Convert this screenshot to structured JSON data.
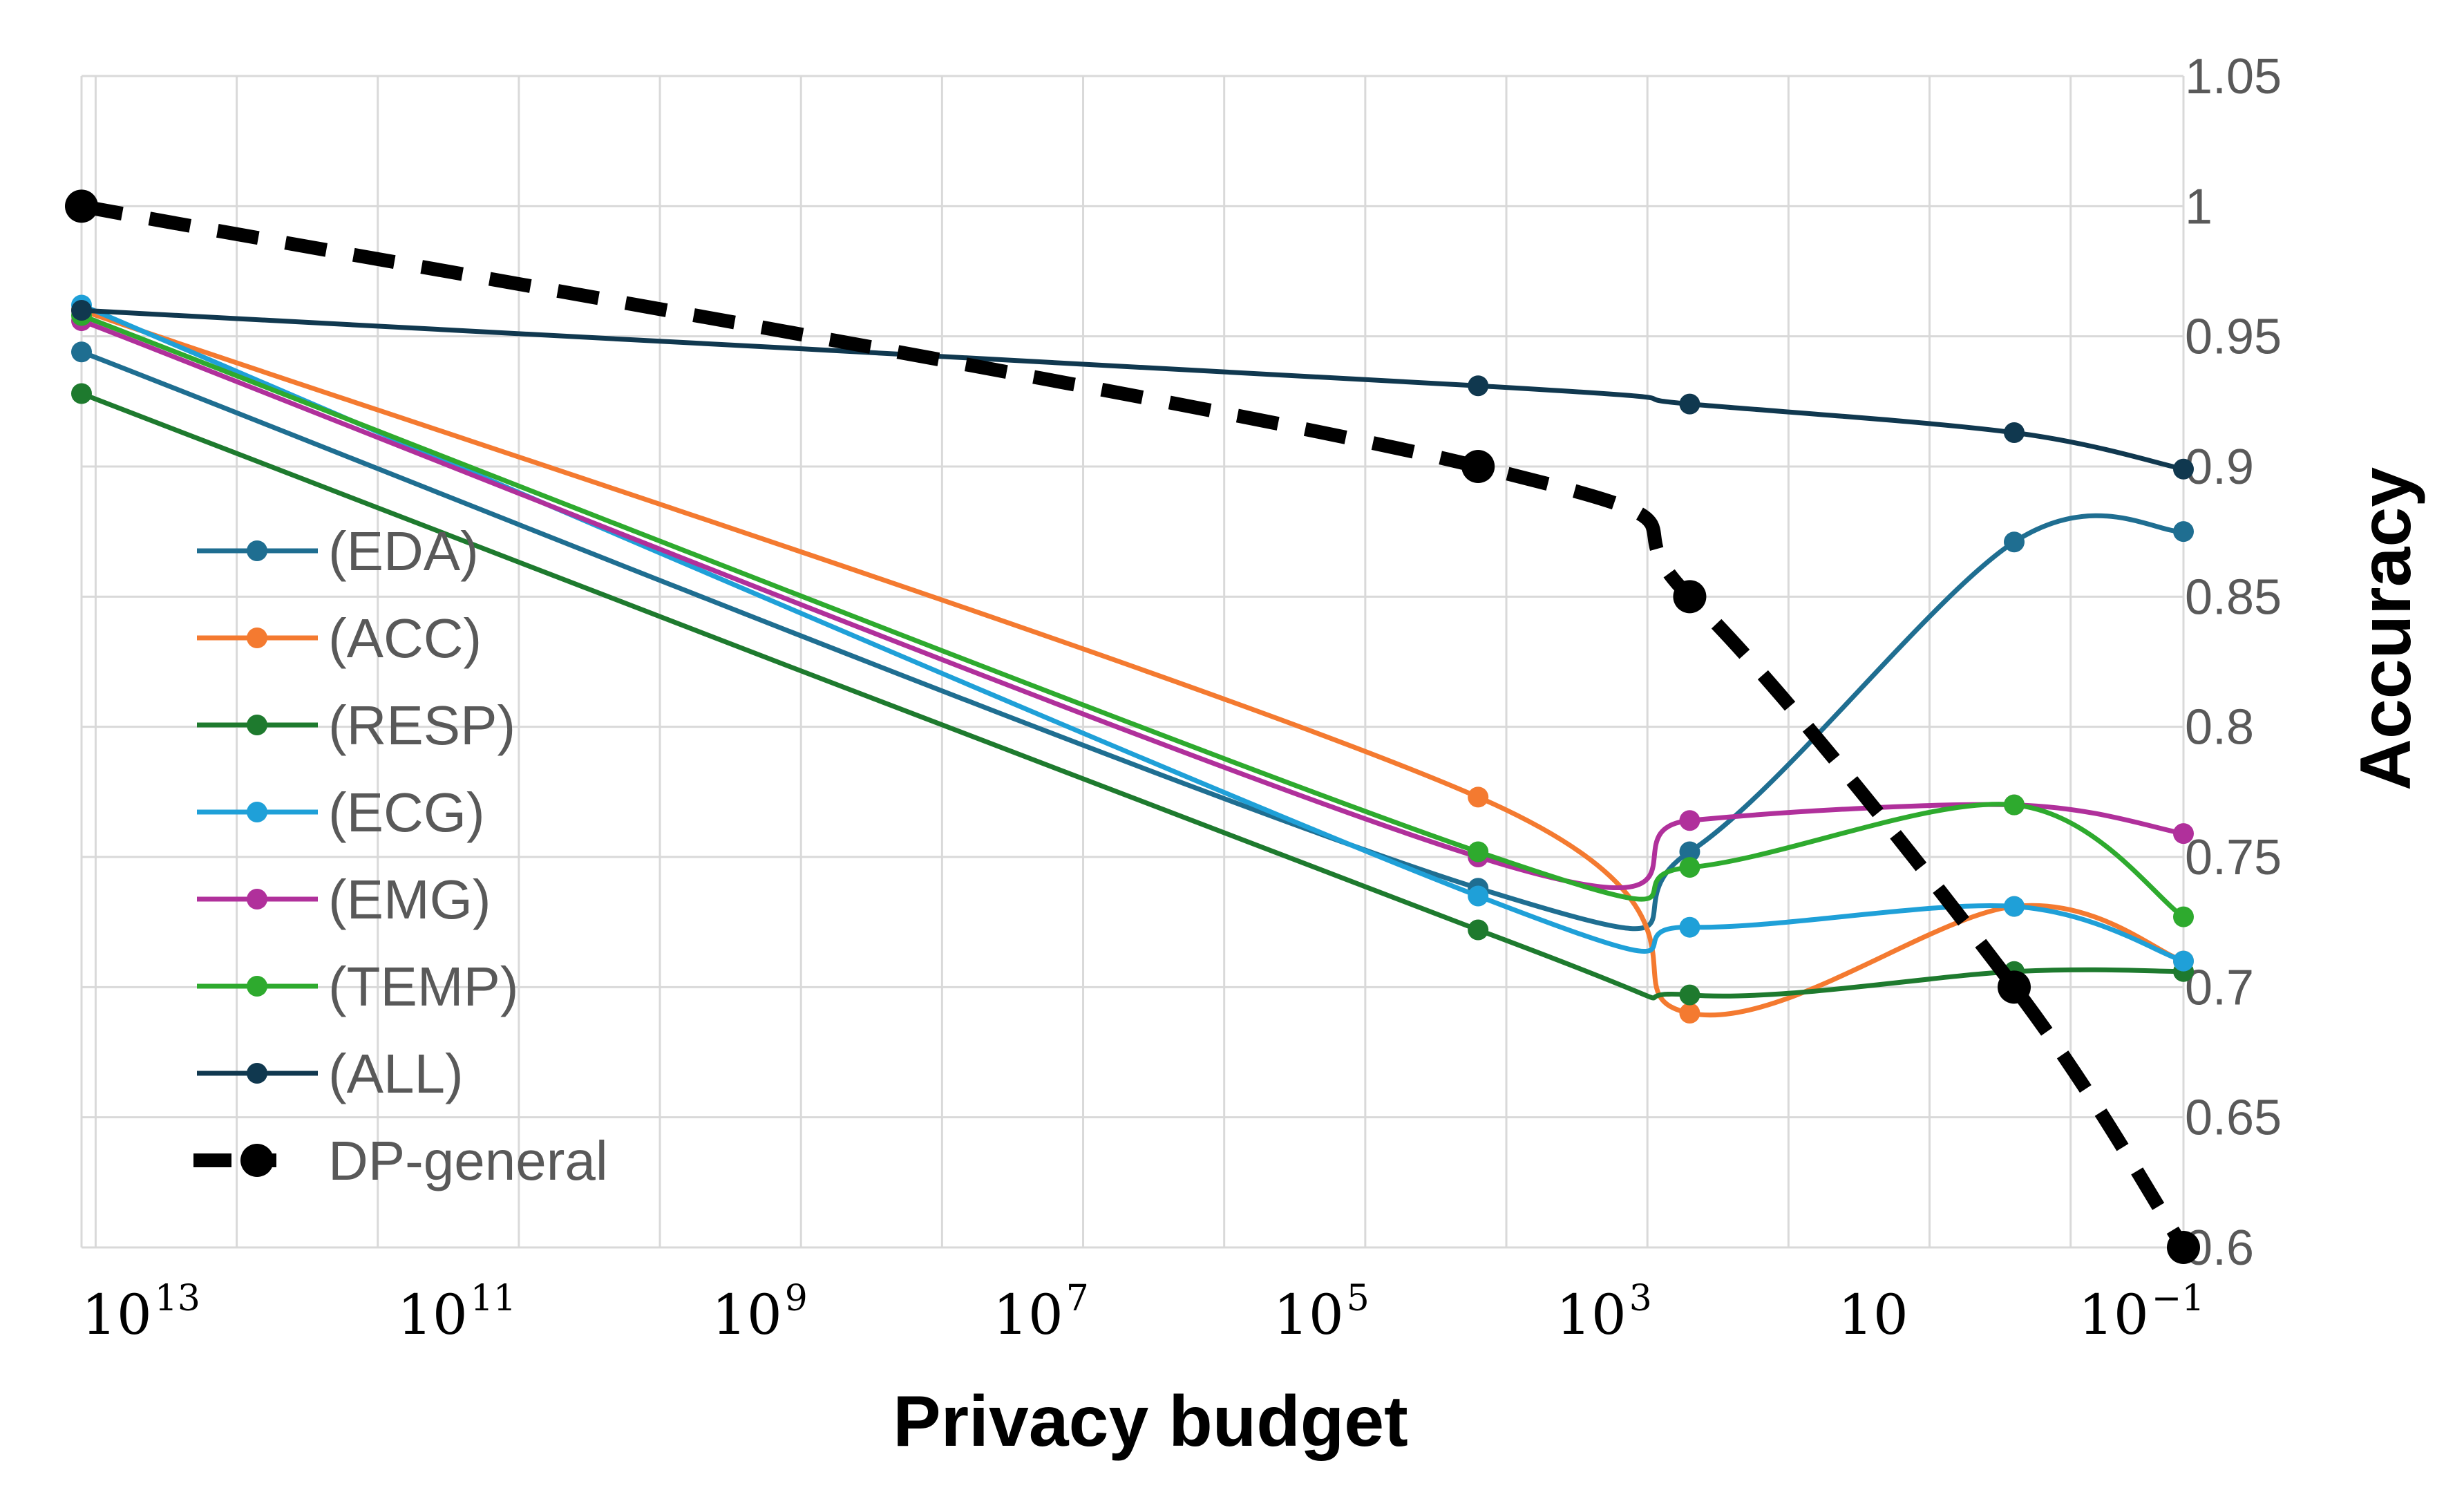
{
  "chart_data": {
    "type": "line",
    "title": "",
    "xlabel": "Privacy budget",
    "ylabel": "Accuracy",
    "x_scale": "log",
    "x_direction": "descending",
    "grid": true,
    "legend_position": "left-center",
    "xlim_log10": [
      13.1,
      -1.8
    ],
    "ylim": [
      0.6,
      1.05
    ],
    "y_ticks": [
      {
        "value": 0.6,
        "label": "0.6"
      },
      {
        "value": 0.65,
        "label": "0.65"
      },
      {
        "value": 0.7,
        "label": "0.7"
      },
      {
        "value": 0.75,
        "label": "0.75"
      },
      {
        "value": 0.8,
        "label": "0.8"
      },
      {
        "value": 0.85,
        "label": "0.85"
      },
      {
        "value": 0.9,
        "label": "0.9"
      },
      {
        "value": 0.95,
        "label": "0.95"
      },
      {
        "value": 1.0,
        "label": "1"
      },
      {
        "value": 1.05,
        "label": "1.05"
      }
    ],
    "x_ticks": [
      {
        "log10": 13,
        "base": "10",
        "exp": "13"
      },
      {
        "log10": 11,
        "base": "10",
        "exp": "11"
      },
      {
        "log10": 9,
        "base": "10",
        "exp": "9"
      },
      {
        "log10": 7,
        "base": "10",
        "exp": "7"
      },
      {
        "log10": 5,
        "base": "10",
        "exp": "5"
      },
      {
        "log10": 3,
        "base": "10",
        "exp": "3"
      },
      {
        "log10": 1,
        "base": "10",
        "exp": ""
      },
      {
        "log10": -1,
        "base": "10",
        "exp": "−1"
      }
    ],
    "x_log10": [
      13.1,
      3.2,
      1.7,
      -0.6,
      -1.8
    ],
    "series": [
      {
        "name": "(EDA)",
        "color": "#1F6E91",
        "values": [
          0.944,
          0.738,
          0.752,
          0.871,
          0.875
        ],
        "dashed": false
      },
      {
        "name": "(ACC)",
        "color": "#F47A30",
        "values": [
          0.96,
          0.773,
          0.69,
          0.731,
          0.71
        ],
        "dashed": false
      },
      {
        "name": "(RESP)",
        "color": "#1E7A2E",
        "values": [
          0.928,
          0.722,
          0.697,
          0.706,
          0.706
        ],
        "dashed": false
      },
      {
        "name": "(ECG)",
        "color": "#1FA0D8",
        "values": [
          0.962,
          0.735,
          0.723,
          0.731,
          0.71
        ],
        "dashed": false
      },
      {
        "name": "(EMG)",
        "color": "#B0309B",
        "values": [
          0.956,
          0.75,
          0.764,
          0.77,
          0.759
        ],
        "dashed": false
      },
      {
        "name": "(TEMP)",
        "color": "#2EAA2E",
        "values": [
          0.958,
          0.752,
          0.746,
          0.77,
          0.727
        ],
        "dashed": false
      },
      {
        "name": "(ALL)",
        "color": "#10384F",
        "values": [
          0.96,
          0.931,
          0.924,
          0.913,
          0.899
        ],
        "dashed": false
      },
      {
        "name": "DP-general",
        "color": "#000000",
        "values": [
          1.0,
          0.9,
          0.85,
          0.7,
          0.6
        ],
        "dashed": true
      }
    ]
  }
}
